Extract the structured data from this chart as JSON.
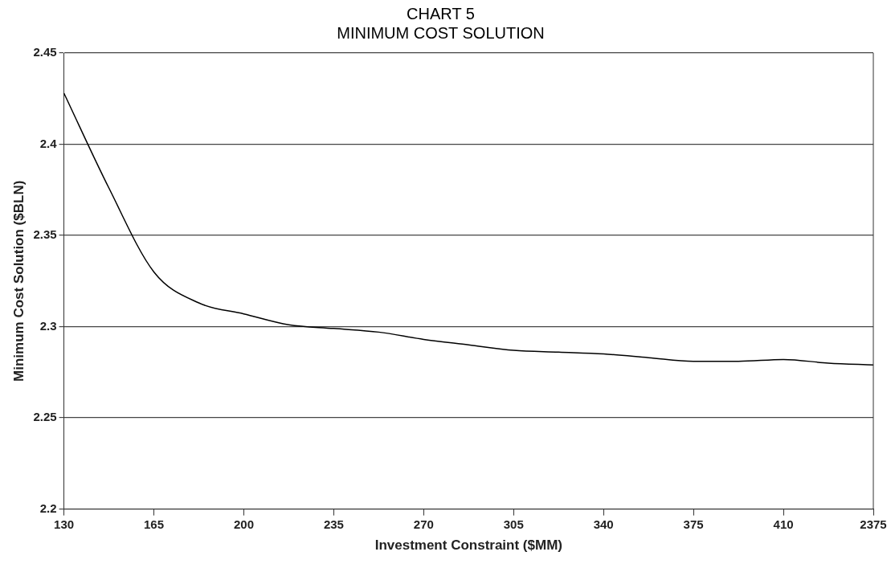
{
  "chart_data": {
    "type": "line",
    "title": "CHART 5",
    "subtitle": "MINIMUM COST SOLUTION",
    "xlabel": "Investment Constraint ($MM)",
    "ylabel": "Minimum Cost Solution ($BLN)",
    "categories": [
      "130",
      null,
      "165",
      null,
      "200",
      null,
      "235",
      null,
      "270",
      null,
      "305",
      null,
      "340",
      null,
      "375",
      null,
      "410",
      null,
      "2375"
    ],
    "series": [
      {
        "color": "#000000",
        "values": [
          2.428,
          2.376,
          2.33,
          2.313,
          2.307,
          2.301,
          2.299,
          2.297,
          2.293,
          2.29,
          2.287,
          2.286,
          2.285,
          2.283,
          2.281,
          2.281,
          2.282,
          2.28,
          2.279
        ]
      }
    ],
    "ylim": [
      2.2,
      2.45
    ],
    "yticks": [
      2.2,
      2.25,
      2.3,
      2.35,
      2.4,
      2.45
    ],
    "grid": "y",
    "legend": false,
    "marker": "none",
    "line_style": "solid"
  }
}
